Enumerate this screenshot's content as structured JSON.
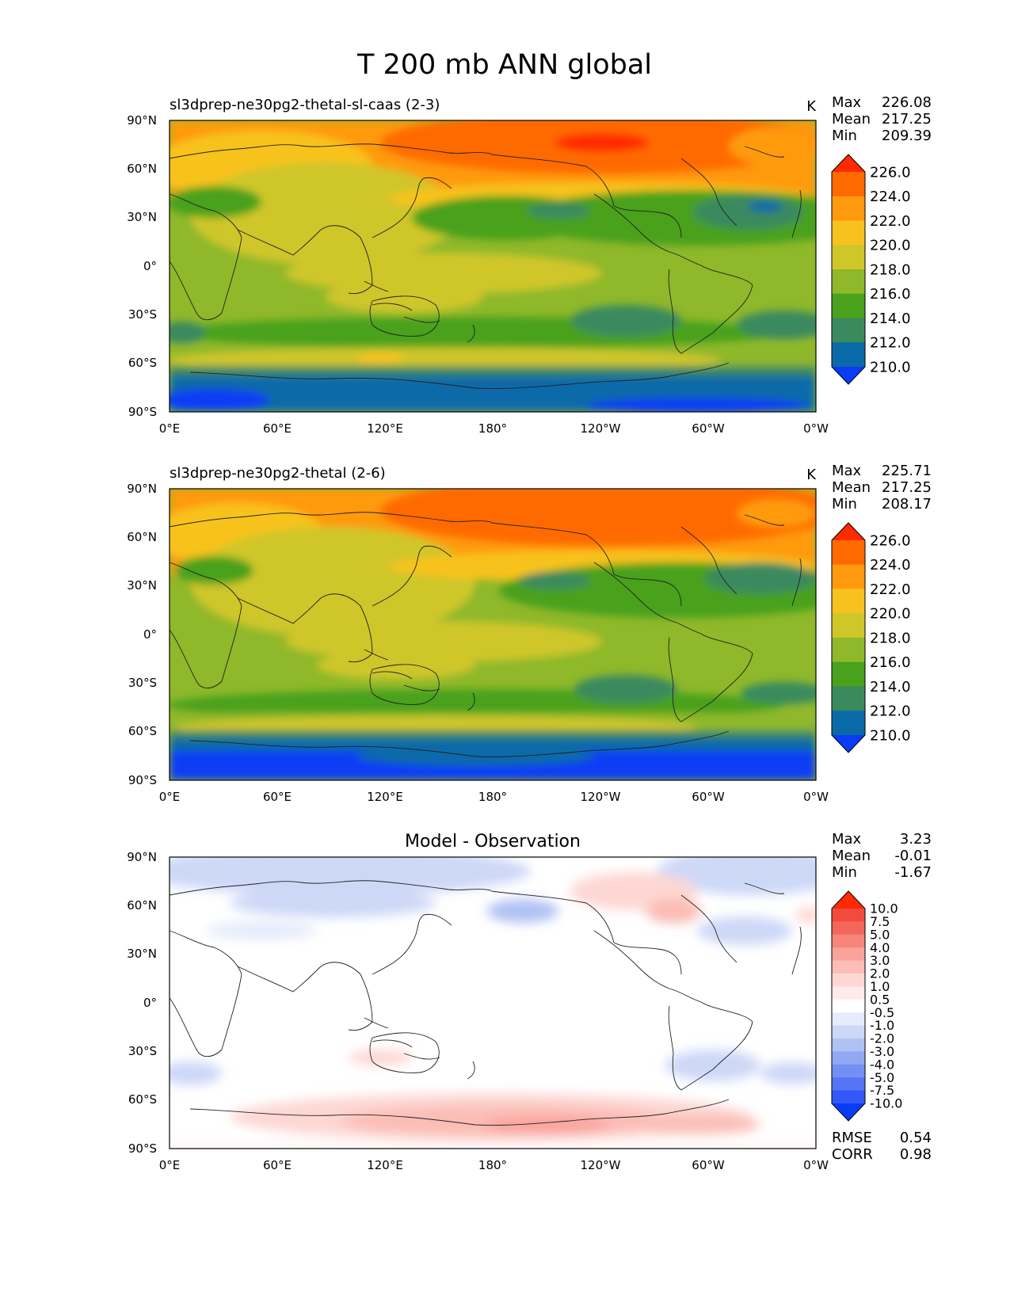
{
  "title": "T 200 mb ANN global",
  "panels": [
    {
      "title": "sl3dprep-ne30pg2-thetal-sl-caas (2-3)",
      "units": "K",
      "stats": [
        {
          "label": "Max",
          "value": "226.08"
        },
        {
          "label": "Mean",
          "value": "217.25"
        },
        {
          "label": "Min",
          "value": "209.39"
        }
      ]
    },
    {
      "title": "sl3dprep-ne30pg2-thetal (2-6)",
      "units": "K",
      "stats": [
        {
          "label": "Max",
          "value": "225.71"
        },
        {
          "label": "Mean",
          "value": "217.25"
        },
        {
          "label": "Min",
          "value": "208.17"
        }
      ]
    },
    {
      "title": "Model - Observation",
      "units": "",
      "stats": [
        {
          "label": "Max",
          "value": "3.23"
        },
        {
          "label": "Mean",
          "value": "-0.01"
        },
        {
          "label": "Min",
          "value": "-1.67"
        }
      ],
      "metrics": [
        {
          "label": "RMSE",
          "value": "0.54"
        },
        {
          "label": "CORR",
          "value": "0.98"
        }
      ]
    }
  ],
  "axis_ticks": {
    "lat": [
      "90°N",
      "60°N",
      "30°N",
      "0°",
      "30°S",
      "60°S",
      "90°S"
    ],
    "lon_panels_1_2": [
      "0°E",
      "60°E",
      "120°E",
      "180°",
      "120°W",
      "60°W",
      "0°W"
    ],
    "lon_panel_3": [
      "0°E",
      "60°E",
      "120°E",
      "180°",
      "120°W",
      "60°W",
      "0°W"
    ]
  },
  "colorbars": {
    "field": {
      "labels": [
        "226.0",
        "224.0",
        "222.0",
        "220.0",
        "218.0",
        "216.0",
        "214.0",
        "212.0",
        "210.0"
      ],
      "colors": [
        "#ff2a00",
        "#ff6a00",
        "#ff9a10",
        "#f8c21e",
        "#cfc62a",
        "#8fb82a",
        "#4aa11b",
        "#3b8a5e",
        "#0a6aa8",
        "#0a3cf5"
      ]
    },
    "diff": {
      "labels": [
        "10.0",
        "7.5",
        "5.0",
        "4.0",
        "3.0",
        "2.0",
        "1.0",
        "0.5",
        "-0.5",
        "-1.0",
        "-2.0",
        "-3.0",
        "-4.0",
        "-5.0",
        "-7.5",
        "-10.0"
      ],
      "colors": [
        "#ff2a00",
        "#f24b3e",
        "#f4665c",
        "#f7857c",
        "#f9a39b",
        "#fbbdb6",
        "#fdd7d3",
        "#feebe9",
        "#ffffff",
        "#e6ecfb",
        "#cdd8f7",
        "#b0c1f4",
        "#92a8f2",
        "#7590f4",
        "#5575f6",
        "#3358f8",
        "#0a3cf5"
      ]
    }
  },
  "chart_data": [
    {
      "type": "heatmap",
      "title": "sl3dprep-ne30pg2-thetal-sl-caas (2-3)",
      "units": "K",
      "xlabel": "",
      "ylabel": "",
      "xlim": [
        0,
        360
      ],
      "ylim": [
        -90,
        90
      ],
      "color_levels": [
        210.0,
        212.0,
        214.0,
        216.0,
        218.0,
        220.0,
        222.0,
        224.0,
        226.0
      ],
      "max": 226.08,
      "mean": 217.25,
      "min": 209.39
    },
    {
      "type": "heatmap",
      "title": "sl3dprep-ne30pg2-thetal (2-6)",
      "units": "K",
      "xlabel": "",
      "ylabel": "",
      "xlim": [
        0,
        360
      ],
      "ylim": [
        -90,
        90
      ],
      "color_levels": [
        210.0,
        212.0,
        214.0,
        216.0,
        218.0,
        220.0,
        222.0,
        224.0,
        226.0
      ],
      "max": 225.71,
      "mean": 217.25,
      "min": 208.17
    },
    {
      "type": "heatmap",
      "title": "Model - Observation",
      "xlabel": "",
      "ylabel": "",
      "xlim": [
        0,
        360
      ],
      "ylim": [
        -90,
        90
      ],
      "color_levels": [
        -10.0,
        -7.5,
        -5.0,
        -4.0,
        -3.0,
        -2.0,
        -1.0,
        -0.5,
        0.5,
        1.0,
        2.0,
        3.0,
        4.0,
        5.0,
        7.5,
        10.0
      ],
      "max": 3.23,
      "mean": -0.01,
      "min": -1.67,
      "rmse": 0.54,
      "corr": 0.98
    }
  ]
}
